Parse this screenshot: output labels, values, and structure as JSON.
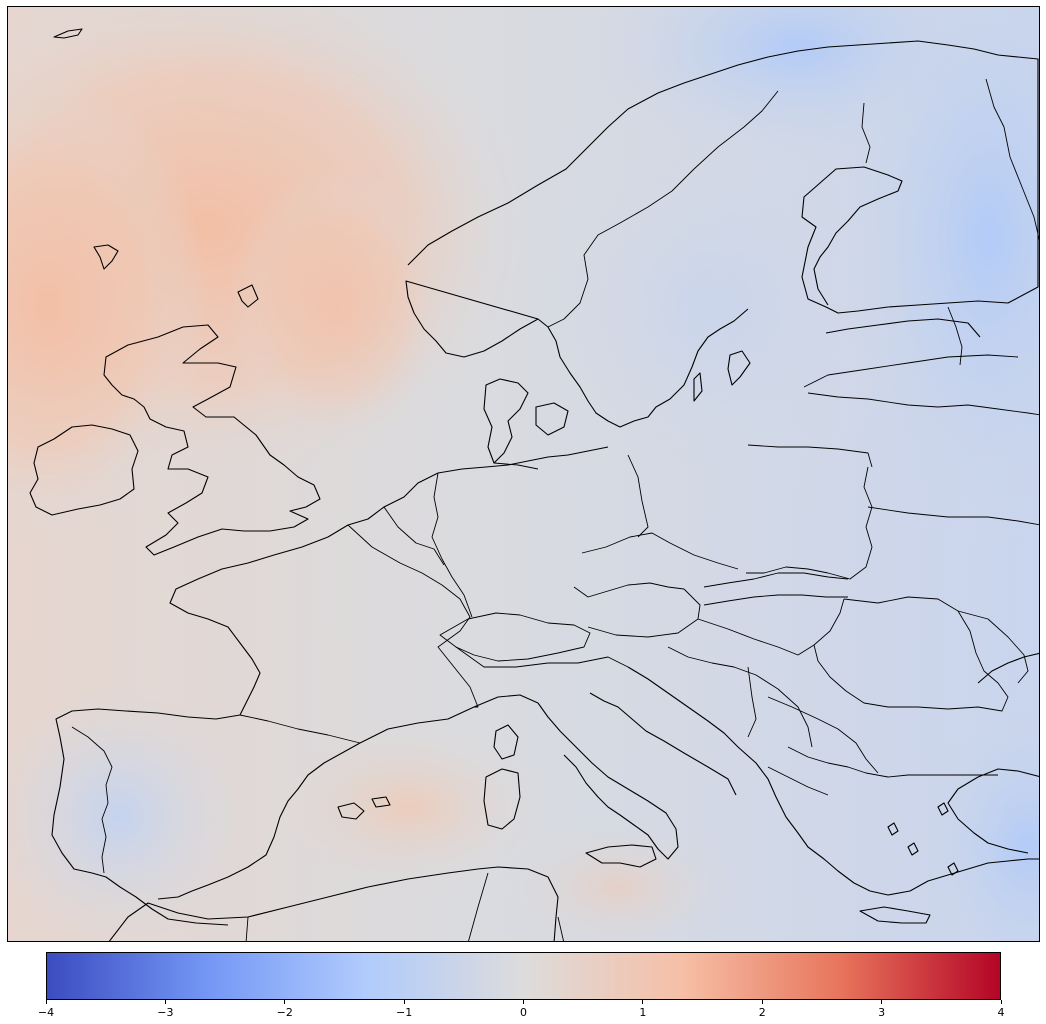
{
  "map": {
    "region": "Europe",
    "colormap": "coolwarm",
    "coastline_color": "#000000",
    "field_colors": {
      "neutral": "#dddcdc",
      "warm": "#f3c1a7",
      "cool": "#b9cff7"
    }
  },
  "colorbar": {
    "min": -4,
    "max": 4,
    "stops": [
      "#3b4cc0",
      "#7396f5",
      "#b0cbfc",
      "#dddcdc",
      "#f6bfa6",
      "#e7745b",
      "#b40426"
    ],
    "ticks": [
      {
        "value": -4,
        "label": "−4"
      },
      {
        "value": -3,
        "label": "−3"
      },
      {
        "value": -2,
        "label": "−2"
      },
      {
        "value": -1,
        "label": "−1"
      },
      {
        "value": 0,
        "label": "0"
      },
      {
        "value": 1,
        "label": "1"
      },
      {
        "value": 2,
        "label": "2"
      },
      {
        "value": 3,
        "label": "3"
      },
      {
        "value": 4,
        "label": "4"
      }
    ]
  }
}
